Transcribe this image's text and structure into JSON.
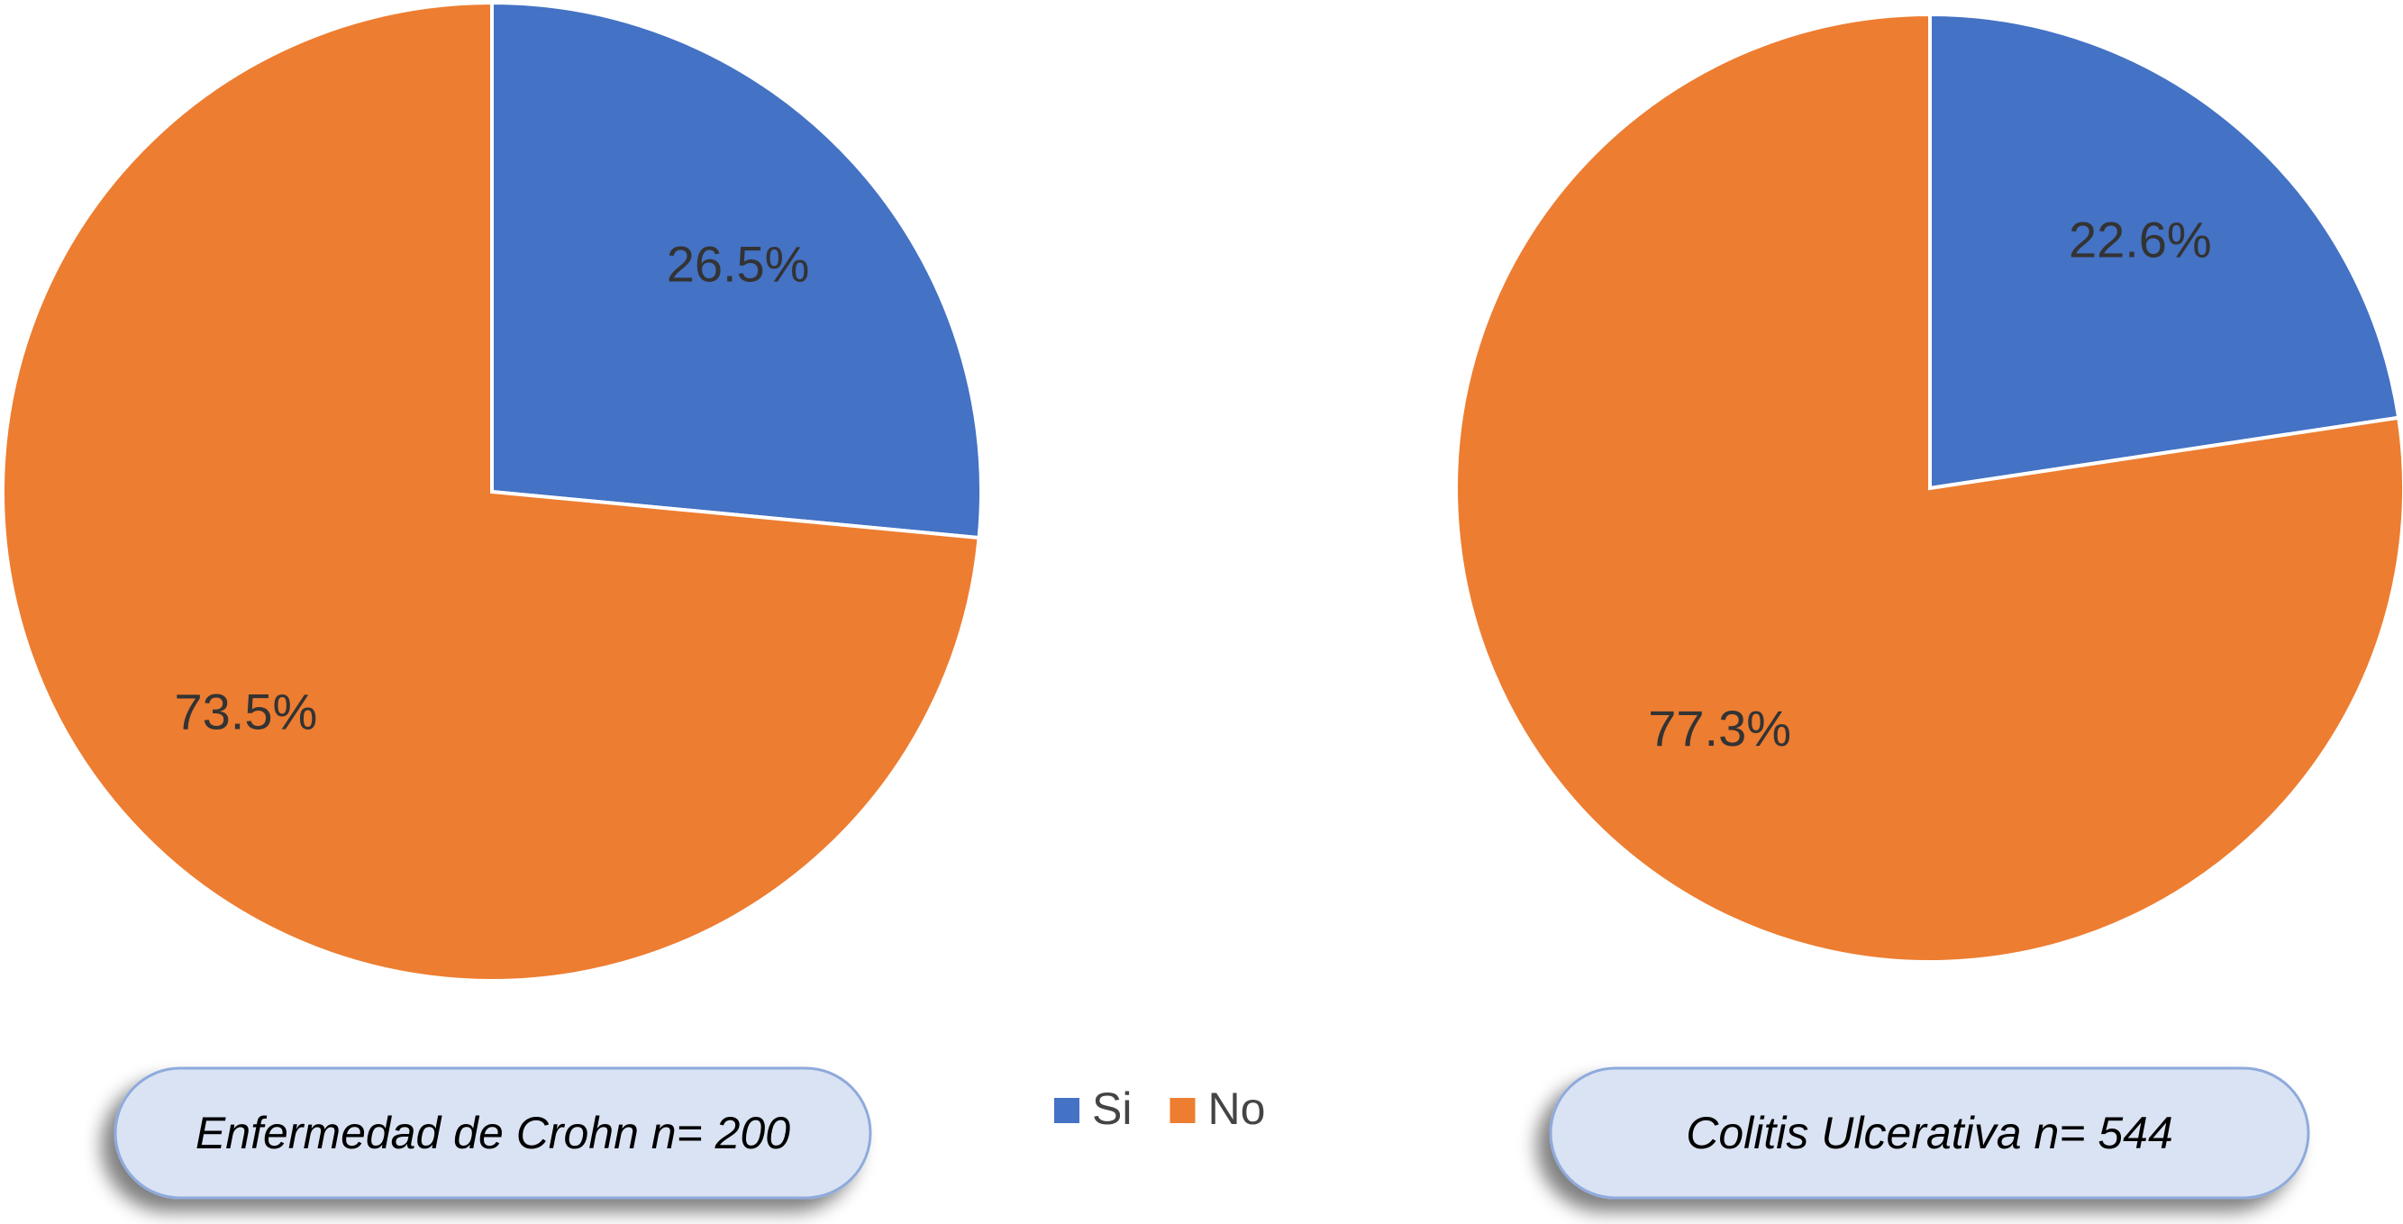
{
  "chart_data": [
    {
      "type": "pie",
      "title": "Enfermedad de Crohn n= 200",
      "categories": [
        "Si",
        "No"
      ],
      "values": [
        26.5,
        73.5
      ],
      "value_labels": [
        "26.5%",
        "73.5%"
      ],
      "colors": [
        "#4472c4",
        "#ed7d31"
      ]
    },
    {
      "type": "pie",
      "title": "Colitis Ulcerativa n= 544",
      "categories": [
        "Si",
        "No"
      ],
      "values": [
        22.6,
        77.3
      ],
      "value_labels": [
        "22.6%",
        "77.3%"
      ],
      "colors": [
        "#4472c4",
        "#ed7d31"
      ]
    }
  ]
}
